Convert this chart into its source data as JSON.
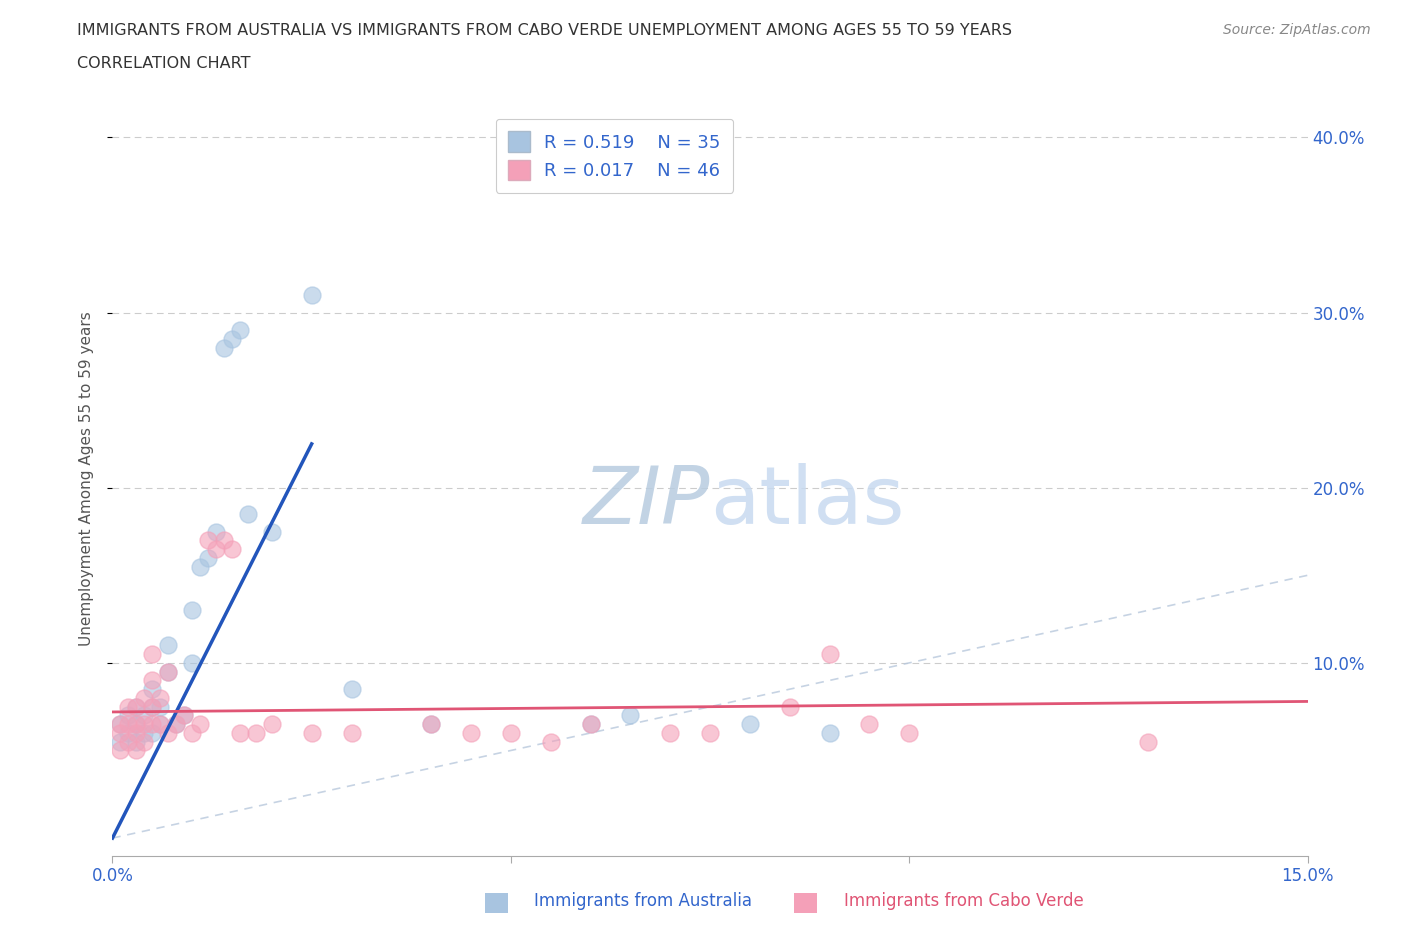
{
  "title_line1": "IMMIGRANTS FROM AUSTRALIA VS IMMIGRANTS FROM CABO VERDE UNEMPLOYMENT AMONG AGES 55 TO 59 YEARS",
  "title_line2": "CORRELATION CHART",
  "source_text": "Source: ZipAtlas.com",
  "ylabel": "Unemployment Among Ages 55 to 59 years",
  "xlabel_label1": "Immigrants from Australia",
  "xlabel_label2": "Immigrants from Cabo Verde",
  "xlim": [
    0.0,
    0.15
  ],
  "ylim": [
    -0.01,
    0.42
  ],
  "xticks": [
    0.0,
    0.05,
    0.1,
    0.15
  ],
  "xtick_labels": [
    "0.0%",
    "",
    "",
    "15.0%"
  ],
  "ytick_positions": [
    0.1,
    0.2,
    0.3,
    0.4
  ],
  "ytick_labels": [
    "10.0%",
    "20.0%",
    "30.0%",
    "40.0%"
  ],
  "r_australia": 0.519,
  "n_australia": 35,
  "r_caboverde": 0.017,
  "n_caboverde": 46,
  "color_australia": "#a8c4e0",
  "color_caboverde": "#f4a0b8",
  "color_trend_australia": "#2255bb",
  "color_trend_caboverde": "#e05575",
  "color_diagonal": "#b8c8dc",
  "color_watermark": "#ccd8ea",
  "australia_x": [
    0.001,
    0.001,
    0.002,
    0.002,
    0.003,
    0.003,
    0.003,
    0.004,
    0.004,
    0.005,
    0.005,
    0.005,
    0.006,
    0.006,
    0.007,
    0.007,
    0.008,
    0.009,
    0.01,
    0.01,
    0.011,
    0.012,
    0.013,
    0.014,
    0.015,
    0.016,
    0.017,
    0.02,
    0.025,
    0.03,
    0.04,
    0.06,
    0.065,
    0.08,
    0.09
  ],
  "australia_y": [
    0.055,
    0.065,
    0.06,
    0.07,
    0.055,
    0.065,
    0.075,
    0.06,
    0.07,
    0.06,
    0.075,
    0.085,
    0.065,
    0.075,
    0.095,
    0.11,
    0.065,
    0.07,
    0.1,
    0.13,
    0.155,
    0.16,
    0.175,
    0.28,
    0.285,
    0.29,
    0.185,
    0.175,
    0.31,
    0.085,
    0.065,
    0.065,
    0.07,
    0.065,
    0.06
  ],
  "caboverde_x": [
    0.001,
    0.001,
    0.001,
    0.002,
    0.002,
    0.002,
    0.003,
    0.003,
    0.003,
    0.003,
    0.004,
    0.004,
    0.004,
    0.005,
    0.005,
    0.005,
    0.005,
    0.006,
    0.006,
    0.007,
    0.007,
    0.008,
    0.009,
    0.01,
    0.011,
    0.012,
    0.013,
    0.014,
    0.015,
    0.016,
    0.018,
    0.02,
    0.025,
    0.03,
    0.04,
    0.045,
    0.05,
    0.055,
    0.06,
    0.07,
    0.075,
    0.085,
    0.09,
    0.095,
    0.1,
    0.13
  ],
  "caboverde_y": [
    0.05,
    0.06,
    0.065,
    0.055,
    0.065,
    0.075,
    0.05,
    0.06,
    0.065,
    0.075,
    0.055,
    0.065,
    0.08,
    0.065,
    0.075,
    0.09,
    0.105,
    0.065,
    0.08,
    0.06,
    0.095,
    0.065,
    0.07,
    0.06,
    0.065,
    0.17,
    0.165,
    0.17,
    0.165,
    0.06,
    0.06,
    0.065,
    0.06,
    0.06,
    0.065,
    0.06,
    0.06,
    0.055,
    0.065,
    0.06,
    0.06,
    0.075,
    0.105,
    0.065,
    0.06,
    0.055
  ],
  "trend_aus_x0": 0.0,
  "trend_aus_y0": 0.0,
  "trend_aus_x1": 0.025,
  "trend_aus_y1": 0.225,
  "trend_cv_x0": 0.0,
  "trend_cv_y0": 0.072,
  "trend_cv_x1": 0.15,
  "trend_cv_y1": 0.078
}
